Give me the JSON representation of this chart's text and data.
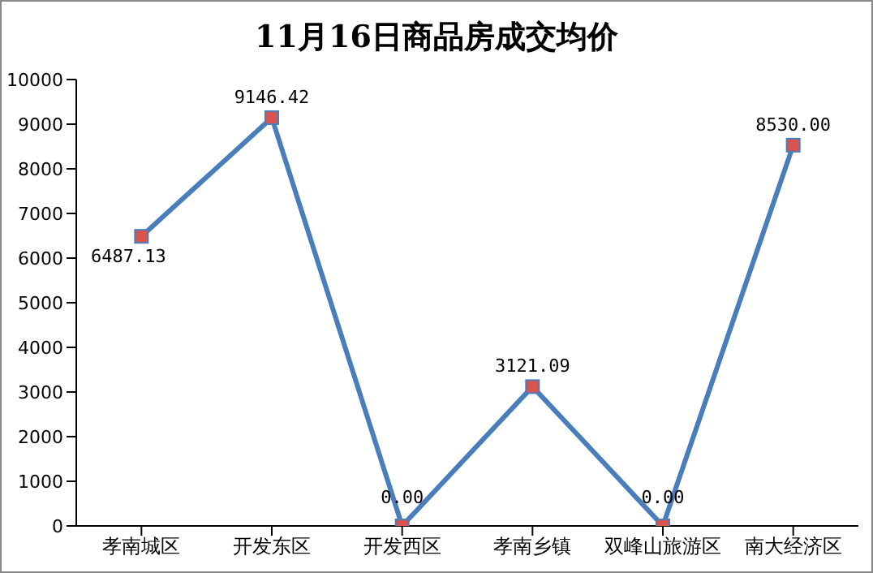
{
  "chart_data": {
    "type": "line",
    "title": "11月16日商品房成交均价",
    "categories": [
      "孝南城区",
      "开发东区",
      "开发西区",
      "孝南乡镇",
      "双峰山旅游区",
      "南大经济区"
    ],
    "series": [
      {
        "color": "#4a7ebb",
        "values": [
          6487.13,
          9146.42,
          0,
          3121.09,
          0,
          8530
        ]
      }
    ],
    "value_labels": [
      "6487.13",
      "9146.42",
      "0.00",
      "3121.09",
      "0.00",
      "8530.00"
    ],
    "ylim": [
      0,
      10000
    ],
    "yticks": [
      0,
      1000,
      2000,
      3000,
      4000,
      5000,
      6000,
      7000,
      8000,
      9000,
      10000
    ],
    "grid": false,
    "marker": "square",
    "line_style": "solid"
  }
}
